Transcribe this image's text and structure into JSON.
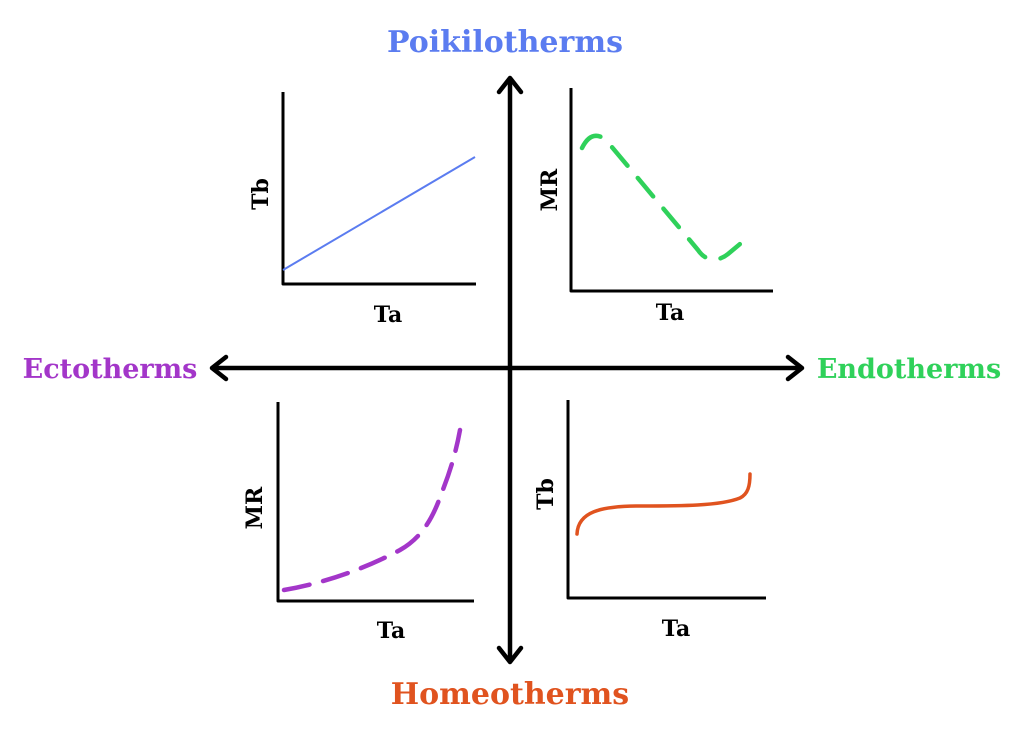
{
  "axes": {
    "top": {
      "label": "Poikilotherms",
      "color": "#5b7cf0"
    },
    "bottom": {
      "label": "Homeotherms",
      "color": "#e0531f"
    },
    "left": {
      "label": "Ectotherms",
      "color": "#a336c9"
    },
    "right": {
      "label": "Endotherms",
      "color": "#2fd15a"
    }
  },
  "panels": {
    "top_left": {
      "ylabel": "Tb",
      "xlabel": "Ta",
      "curve": "linear increase",
      "style": "solid",
      "color": "#5b7cf0"
    },
    "top_right": {
      "ylabel": "MR",
      "xlabel": "Ta",
      "curve": "decrease with plateau",
      "style": "dashed",
      "color": "#2fd15a"
    },
    "bottom_left": {
      "ylabel": "MR",
      "xlabel": "Ta",
      "curve": "exponential increase",
      "style": "dashed",
      "color": "#a336c9"
    },
    "bottom_right": {
      "ylabel": "Tb",
      "xlabel": "Ta",
      "curve": "plateau constant",
      "style": "solid",
      "color": "#e0531f"
    }
  }
}
